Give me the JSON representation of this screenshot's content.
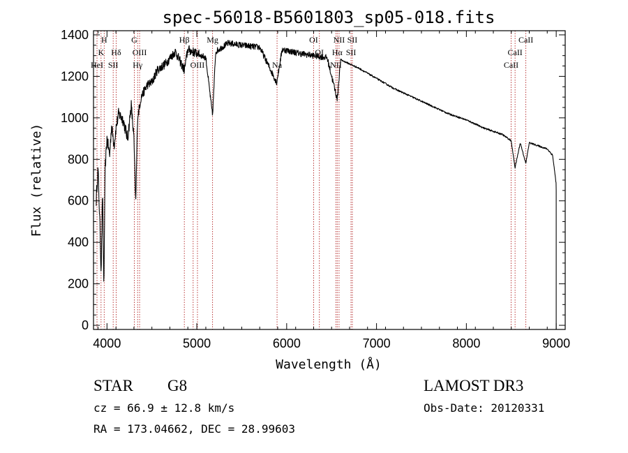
{
  "chart_data": {
    "type": "line",
    "title": "spec-56018-B5601803_sp05-018.fits",
    "xlabel": "Wavelength (Å)",
    "ylabel": "Flux (relative)",
    "xlim": [
      3850,
      9100
    ],
    "ylim": [
      -20,
      1420
    ],
    "x_ticks": [
      4000,
      5000,
      6000,
      7000,
      8000,
      9000
    ],
    "y_ticks": [
      0,
      200,
      400,
      600,
      800,
      1000,
      1200,
      1400
    ],
    "spectrum_anchor_points": [
      [
        3880,
        600
      ],
      [
        3900,
        760
      ],
      [
        3920,
        500
      ],
      [
        3935,
        260
      ],
      [
        3950,
        650
      ],
      [
        3965,
        180
      ],
      [
        3980,
        760
      ],
      [
        4000,
        900
      ],
      [
        4030,
        820
      ],
      [
        4050,
        960
      ],
      [
        4080,
        870
      ],
      [
        4100,
        950
      ],
      [
        4130,
        1020
      ],
      [
        4180,
        990
      ],
      [
        4230,
        900
      ],
      [
        4270,
        1060
      ],
      [
        4300,
        900
      ],
      [
        4320,
        580
      ],
      [
        4340,
        1000
      ],
      [
        4380,
        1100
      ],
      [
        4450,
        1160
      ],
      [
        4500,
        1170
      ],
      [
        4560,
        1230
      ],
      [
        4650,
        1260
      ],
      [
        4760,
        1320
      ],
      [
        4861,
        1230
      ],
      [
        4900,
        1330
      ],
      [
        5000,
        1310
      ],
      [
        5100,
        1290
      ],
      [
        5175,
        1010
      ],
      [
        5210,
        1320
      ],
      [
        5350,
        1360
      ],
      [
        5500,
        1350
      ],
      [
        5700,
        1340
      ],
      [
        5889,
        1170
      ],
      [
        5950,
        1330
      ],
      [
        6150,
        1310
      ],
      [
        6300,
        1300
      ],
      [
        6450,
        1290
      ],
      [
        6563,
        1090
      ],
      [
        6600,
        1280
      ],
      [
        6800,
        1240
      ],
      [
        7000,
        1190
      ],
      [
        7200,
        1140
      ],
      [
        7400,
        1100
      ],
      [
        7600,
        1060
      ],
      [
        7800,
        1020
      ],
      [
        8000,
        990
      ],
      [
        8200,
        950
      ],
      [
        8400,
        920
      ],
      [
        8498,
        890
      ],
      [
        8542,
        760
      ],
      [
        8600,
        880
      ],
      [
        8662,
        780
      ],
      [
        8700,
        880
      ],
      [
        8900,
        850
      ],
      [
        8960,
        820
      ],
      [
        9000,
        680
      ]
    ],
    "lines": [
      {
        "label": "HeI",
        "wave": 3889,
        "row": 2
      },
      {
        "label": "K",
        "wave": 3934,
        "row": 1
      },
      {
        "label": "H",
        "wave": 3969,
        "row": 0
      },
      {
        "label": "SII",
        "wave": 4069,
        "row": 2
      },
      {
        "label": "Hδ",
        "wave": 4102,
        "row": 1
      },
      {
        "label": "G",
        "wave": 4304,
        "row": 0
      },
      {
        "label": "Hγ",
        "wave": 4341,
        "row": 2
      },
      {
        "label": "OIII",
        "wave": 4363,
        "row": 1
      },
      {
        "label": "Hβ",
        "wave": 4861,
        "row": 0
      },
      {
        "label": "OIII",
        "wave": 4959,
        "row": 1
      },
      {
        "label": "OIII",
        "wave": 5007,
        "row": 2
      },
      {
        "label": "Mg",
        "wave": 5175,
        "row": 0
      },
      {
        "label": "Na",
        "wave": 5893,
        "row": 2
      },
      {
        "label": "OI",
        "wave": 6300,
        "row": 0
      },
      {
        "label": "OI",
        "wave": 6364,
        "row": 1
      },
      {
        "label": "NII",
        "wave": 6548,
        "row": 2
      },
      {
        "label": "Hα",
        "wave": 6563,
        "row": 1
      },
      {
        "label": "NII",
        "wave": 6583,
        "row": 0
      },
      {
        "label": "SII",
        "wave": 6716,
        "row": 1
      },
      {
        "label": "SII",
        "wave": 6731,
        "row": 0
      },
      {
        "label": "CaII",
        "wave": 8498,
        "row": 2
      },
      {
        "label": "CaII",
        "wave": 8542,
        "row": 1
      },
      {
        "label": "CaII",
        "wave": 8662,
        "row": 0
      }
    ],
    "colors": {
      "spectrum": "#000000",
      "line_marker": "#b22222",
      "axes": "#000000"
    }
  },
  "info": {
    "class": "STAR",
    "subclass": "G8",
    "survey": "LAMOST DR3",
    "cz": "cz = 66.9 ± 12.8 km/s",
    "obs_date": "Obs-Date: 20120331",
    "coords": "RA = 173.04662, DEC =  28.99603"
  }
}
